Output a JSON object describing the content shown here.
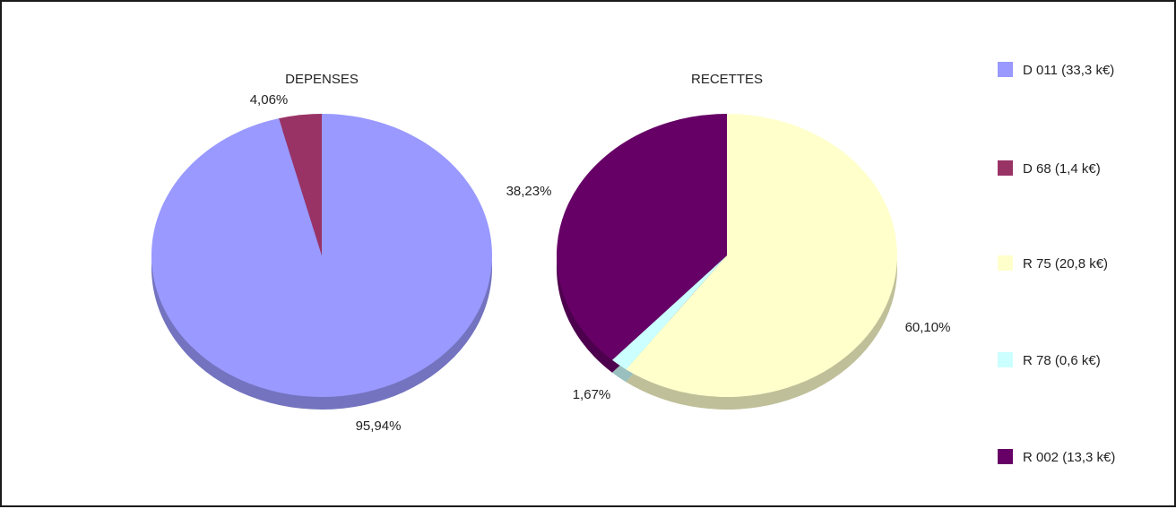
{
  "chart_data": [
    {
      "type": "pie",
      "title": "DEPENSES",
      "slices": [
        {
          "label": "D 011 (33,3 k€)",
          "value": 95.94,
          "percent_label": "95,94%",
          "color": "#9999ff"
        },
        {
          "label": "D 68 (1,4 k€)",
          "value": 4.06,
          "percent_label": "4,06%",
          "color": "#993366"
        }
      ]
    },
    {
      "type": "pie",
      "title": "RECETTES",
      "slices": [
        {
          "label": "R 75 (20,8 k€)",
          "value": 60.1,
          "percent_label": "60,10%",
          "color": "#ffffcc"
        },
        {
          "label": "R 78 (0,6 k€)",
          "value": 1.67,
          "percent_label": "1,67%",
          "color": "#ccffff"
        },
        {
          "label": "R 002 (13,3 k€)",
          "value": 38.23,
          "percent_label": "38,23%",
          "color": "#660066"
        }
      ]
    }
  ],
  "legend": {
    "placement": "right",
    "items": [
      {
        "label": "D 011 (33,3 k€)",
        "color": "#9999ff"
      },
      {
        "label": "D 68 (1,4 k€)",
        "color": "#993366"
      },
      {
        "label": "R 75 (20,8 k€)",
        "color": "#ffffcc"
      },
      {
        "label": "R 78 (0,6 k€)",
        "color": "#ccffff"
      },
      {
        "label": "R 002 (13,3 k€)",
        "color": "#660066"
      }
    ]
  }
}
